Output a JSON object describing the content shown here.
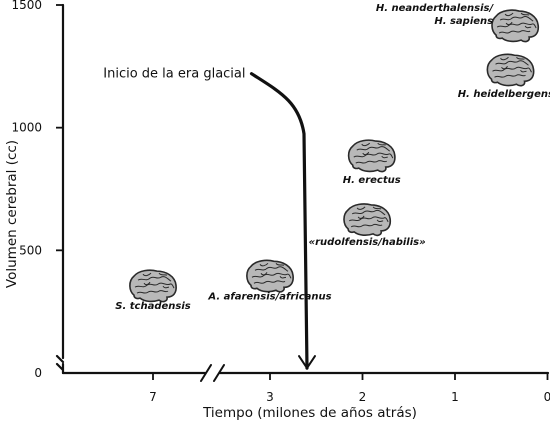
{
  "chart_data": {
    "type": "scatter",
    "title": "",
    "xlabel": "Tiempo (milones de años atrás)",
    "ylabel": "Volumen cerebral (cc)",
    "xlim": [
      7.5,
      0
    ],
    "ylim": [
      0,
      1500
    ],
    "axis_break_x": [
      6.7,
      3.3
    ],
    "y_axis_break": true,
    "x_ticks": [
      {
        "value": 7,
        "label": "7"
      },
      {
        "value": 3,
        "label": "3"
      },
      {
        "value": 2,
        "label": "2"
      },
      {
        "value": 1,
        "label": "1"
      },
      {
        "value": 0,
        "label": "0"
      }
    ],
    "y_ticks": [
      {
        "value": 0,
        "label": "0"
      },
      {
        "value": 500,
        "label": "500"
      },
      {
        "value": 1000,
        "label": "1000"
      },
      {
        "value": 1500,
        "label": "1500"
      }
    ],
    "grid": false,
    "points": [
      {
        "label": "S. tchadensis",
        "x": 7.0,
        "y": 350
      },
      {
        "label": "A. afarensis/africanus",
        "x": 3.0,
        "y": 390
      },
      {
        "label": "«rudolfensis/habilis»",
        "x": 1.95,
        "y": 620
      },
      {
        "label": "H. erectus",
        "x": 1.9,
        "y": 880
      },
      {
        "label": "H. heidelbergensis",
        "x": 0.4,
        "y": 1230
      },
      {
        "label": "H. neanderthalensis/\nH. sapiens",
        "x": 0.35,
        "y": 1410
      }
    ],
    "annotations": [
      {
        "text": "Inicio de la era glacial",
        "x_from": 3.2,
        "x_to": 2.6,
        "y_from": 1220,
        "y_to": 20
      }
    ]
  },
  "colors": {
    "brain_fill": "#b8b8b8",
    "brain_outline": "#2a2a2a",
    "ink": "#111111"
  },
  "icons": {
    "brain": "brain-icon"
  }
}
